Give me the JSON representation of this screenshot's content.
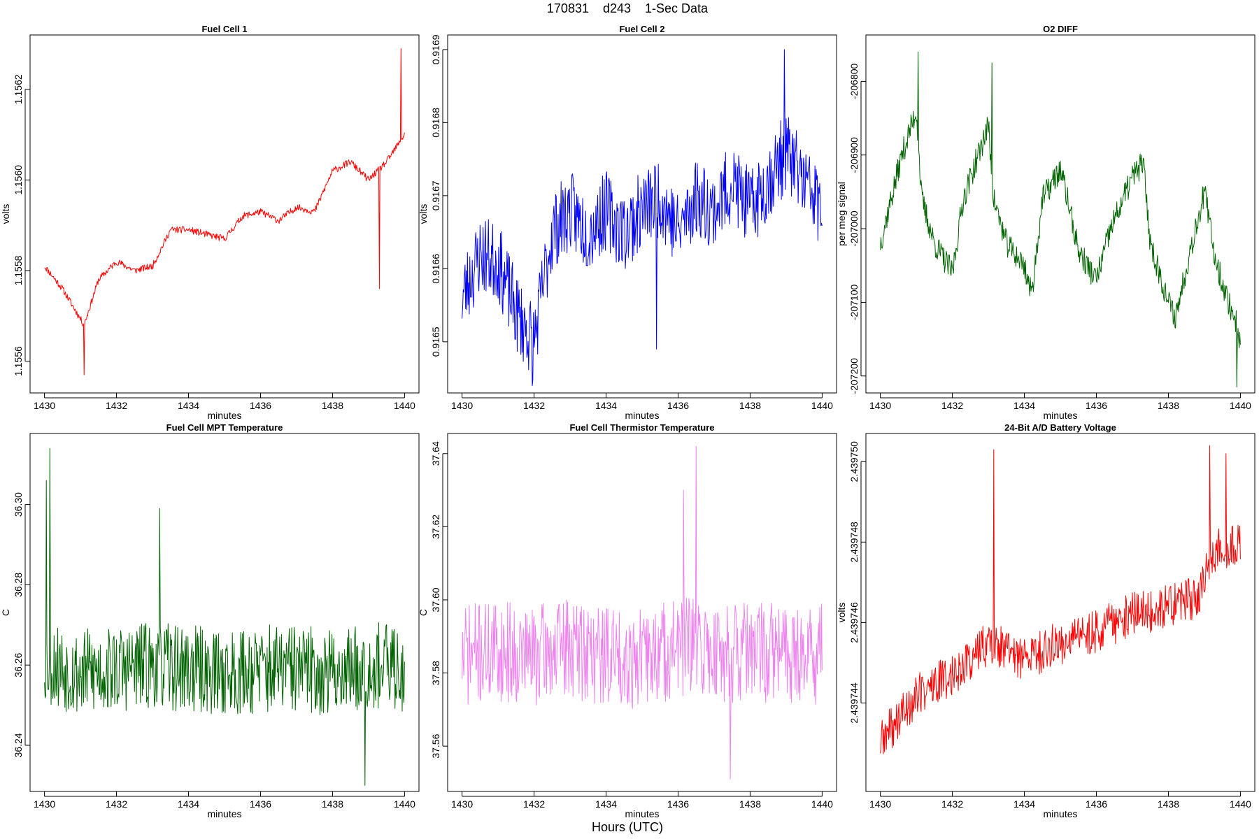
{
  "figure": {
    "suptitle": "170831    d243    1-Sec Data",
    "footer_xlabel": "Hours (UTC)"
  },
  "chart_data": [
    {
      "type": "line",
      "title": "Fuel Cell 1",
      "xlabel": "minutes",
      "ylabel": "volts",
      "color": "#ff0000",
      "xlim": [
        1429.6,
        1440.4
      ],
      "ylim": [
        1.15553,
        1.15632
      ],
      "xticks": [
        1430,
        1432,
        1434,
        1436,
        1438,
        1440
      ],
      "xtick_labels": [
        "1430",
        "1432",
        "1434",
        "1436",
        "1438",
        "1440"
      ],
      "yticks": [
        1.1556,
        1.1558,
        1.156,
        1.1562
      ],
      "ytick_labels": [
        "1.1556",
        "1.1558",
        "1.1560",
        "1.1562"
      ],
      "noise_seed": 11,
      "keypoints": {
        "x": [
          1430,
          1430.5,
          1431.1,
          1431.5,
          1432.0,
          1432.5,
          1433.0,
          1433.5,
          1434.0,
          1434.5,
          1435.0,
          1435.5,
          1436.0,
          1436.5,
          1437.0,
          1437.5,
          1438.0,
          1438.5,
          1439.0,
          1439.5,
          1440
        ],
        "y": [
          1.15581,
          1.15576,
          1.15568,
          1.15578,
          1.15582,
          1.1558,
          1.15581,
          1.15589,
          1.15589,
          1.15588,
          1.15587,
          1.15592,
          1.15593,
          1.15591,
          1.15594,
          1.15593,
          1.15602,
          1.15604,
          1.156,
          1.15604,
          1.1561
        ]
      },
      "amplitude": 7.5e-06,
      "spikes": [
        {
          "x": 1431.1,
          "y": 1.15557
        },
        {
          "x": 1439.9,
          "y": 1.15629
        },
        {
          "x": 1439.3,
          "y": 1.15576
        }
      ]
    },
    {
      "type": "line",
      "title": "Fuel Cell 2",
      "xlabel": "minutes",
      "ylabel": "volts",
      "color": "#0000ff",
      "xlim": [
        1429.6,
        1440.4
      ],
      "ylim": [
        0.91643,
        0.91692
      ],
      "xticks": [
        1430,
        1432,
        1434,
        1436,
        1438,
        1440
      ],
      "xtick_labels": [
        "1430",
        "1432",
        "1434",
        "1436",
        "1438",
        "1440"
      ],
      "yticks": [
        0.9165,
        0.9166,
        0.9167,
        0.9168,
        0.9169
      ],
      "ytick_labels": [
        "0.9165",
        "0.9166",
        "0.9167",
        "0.9168",
        "0.9169"
      ],
      "noise_seed": 23,
      "keypoints": {
        "x": [
          1430,
          1430.5,
          1431.0,
          1431.5,
          1432.0,
          1432.5,
          1433.0,
          1433.5,
          1434.0,
          1434.5,
          1435.0,
          1435.5,
          1436.0,
          1436.5,
          1437.0,
          1437.5,
          1438.0,
          1438.5,
          1439.0,
          1439.5,
          1440
        ],
        "y": [
          0.91656,
          0.91662,
          0.91661,
          0.91654,
          0.9165,
          0.91665,
          0.91668,
          0.91665,
          0.91668,
          0.91665,
          0.91668,
          0.9167,
          0.91665,
          0.9167,
          0.91668,
          0.91672,
          0.91668,
          0.91672,
          0.91676,
          0.91672,
          0.91668
        ]
      },
      "amplitude": 5.5e-05,
      "spikes": [
        {
          "x": 1431.95,
          "y": 0.91644
        },
        {
          "x": 1438.95,
          "y": 0.9169
        },
        {
          "x": 1435.4,
          "y": 0.91649
        }
      ]
    },
    {
      "type": "line",
      "title": "O2 DIFF",
      "xlabel": "minutes",
      "ylabel": "per meg signal",
      "color": "#006400",
      "xlim": [
        1429.6,
        1440.4
      ],
      "ylim": [
        -207223,
        -206737
      ],
      "xticks": [
        1430,
        1432,
        1434,
        1436,
        1438,
        1440
      ],
      "xtick_labels": [
        "1430",
        "1432",
        "1434",
        "1436",
        "1438",
        "1440"
      ],
      "yticks": [
        -207200,
        -207100,
        -207000,
        -206900,
        -206800
      ],
      "ytick_labels": [
        "-207200",
        "-207100",
        "-207000",
        "-206900",
        "-206800"
      ],
      "noise_seed": 37,
      "keypoints": {
        "x": [
          1430.0,
          1430.3,
          1430.6,
          1431.0,
          1431.15,
          1431.5,
          1432.0,
          1432.3,
          1433.0,
          1433.15,
          1433.5,
          1434.0,
          1434.2,
          1434.5,
          1435.0,
          1435.2,
          1435.5,
          1436.0,
          1436.4,
          1437.0,
          1437.3,
          1437.5,
          1438.0,
          1438.2,
          1438.6,
          1439.0,
          1439.3,
          1439.6,
          1439.9,
          1440.0
        ],
        "y": [
          -207020,
          -206960,
          -206900,
          -206840,
          -206960,
          -207020,
          -207060,
          -206960,
          -206860,
          -206960,
          -207020,
          -207050,
          -207090,
          -206960,
          -206920,
          -206960,
          -207030,
          -207070,
          -207000,
          -206930,
          -206910,
          -207020,
          -207100,
          -207120,
          -207030,
          -206950,
          -207040,
          -207090,
          -207130,
          -207160
        ]
      },
      "amplitude": 18,
      "spikes": [
        {
          "x": 1431.05,
          "y": -206760
        },
        {
          "x": 1433.1,
          "y": -206775
        },
        {
          "x": 1439.9,
          "y": -207215
        }
      ]
    },
    {
      "type": "line",
      "title": "Fuel Cell MPT Temperature",
      "xlabel": "minutes",
      "ylabel": "C",
      "color": "#006400",
      "xlim": [
        1429.6,
        1440.4
      ],
      "ylim": [
        36.2285,
        36.3177
      ],
      "xticks": [
        1430,
        1432,
        1434,
        1436,
        1438,
        1440
      ],
      "xtick_labels": [
        "1430",
        "1432",
        "1434",
        "1436",
        "1438",
        "1440"
      ],
      "yticks": [
        36.24,
        36.26,
        36.28,
        36.3
      ],
      "ytick_labels": [
        "36.24",
        "36.26",
        "36.28",
        "36.30"
      ],
      "noise_seed": 53,
      "keypoints": {
        "x": [
          1430,
          1431,
          1432,
          1433,
          1434,
          1435,
          1436,
          1437,
          1438,
          1439,
          1440
        ],
        "y": [
          36.261,
          36.258,
          36.259,
          36.26,
          36.259,
          36.258,
          36.259,
          36.259,
          36.258,
          36.26,
          36.259
        ]
      },
      "amplitude": 0.011,
      "spikes": [
        {
          "x": 1430.15,
          "y": 36.314
        },
        {
          "x": 1430.05,
          "y": 36.306
        },
        {
          "x": 1438.9,
          "y": 36.23
        },
        {
          "x": 1433.2,
          "y": 36.299
        }
      ]
    },
    {
      "type": "line",
      "title": "Fuel Cell Thermistor Temperature",
      "xlabel": "minutes",
      "ylabel": "C",
      "color": "#ee82ee",
      "xlim": [
        1429.6,
        1440.4
      ],
      "ylim": [
        37.5476,
        37.6455
      ],
      "xticks": [
        1430,
        1432,
        1434,
        1436,
        1438,
        1440
      ],
      "xtick_labels": [
        "1430",
        "1432",
        "1434",
        "1436",
        "1438",
        "1440"
      ],
      "yticks": [
        37.56,
        37.58,
        37.6,
        37.62,
        37.64
      ],
      "ytick_labels": [
        "37.56",
        "37.58",
        "37.60",
        "37.62",
        "37.64"
      ],
      "noise_seed": 71,
      "keypoints": {
        "x": [
          1430,
          1431,
          1432,
          1433,
          1434,
          1435,
          1436,
          1437,
          1438,
          1439,
          1440
        ],
        "y": [
          37.585,
          37.586,
          37.585,
          37.587,
          37.585,
          37.584,
          37.587,
          37.586,
          37.585,
          37.586,
          37.585
        ]
      },
      "amplitude": 0.014,
      "spikes": [
        {
          "x": 1436.5,
          "y": 37.642
        },
        {
          "x": 1437.45,
          "y": 37.551
        },
        {
          "x": 1436.15,
          "y": 37.63
        }
      ]
    },
    {
      "type": "line",
      "title": "24-Bit A/D Battery Voltage",
      "xlabel": "minutes",
      "ylabel": "volts",
      "color": "#ff0000",
      "xlim": [
        1429.6,
        1440.4
      ],
      "ylim": [
        2.4397418,
        2.4397507
      ],
      "xticks": [
        1430,
        1432,
        1434,
        1436,
        1438,
        1440
      ],
      "xtick_labels": [
        "1430",
        "1432",
        "1434",
        "1436",
        "1438",
        "1440"
      ],
      "yticks": [
        2.439744,
        2.439746,
        2.439748,
        2.43975
      ],
      "ytick_labels": [
        "2.439744",
        "2.439746",
        "2.439748",
        "2.439750"
      ],
      "noise_seed": 89,
      "keypoints": {
        "x": [
          1430,
          1431,
          1432,
          1433,
          1434,
          1435,
          1436,
          1437,
          1438,
          1438.8,
          1439.3,
          1440
        ],
        "y": [
          2.439743,
          2.4397442,
          2.4397447,
          2.4397455,
          2.4397451,
          2.4397455,
          2.4397458,
          2.4397462,
          2.4397464,
          2.4397466,
          2.4397478,
          2.439748
        ]
      },
      "amplitude": 5.5e-07,
      "spikes": [
        {
          "x": 1433.15,
          "y": 2.4397503
        },
        {
          "x": 1439.15,
          "y": 2.4397504
        },
        {
          "x": 1439.6,
          "y": 2.4397502
        }
      ]
    }
  ]
}
